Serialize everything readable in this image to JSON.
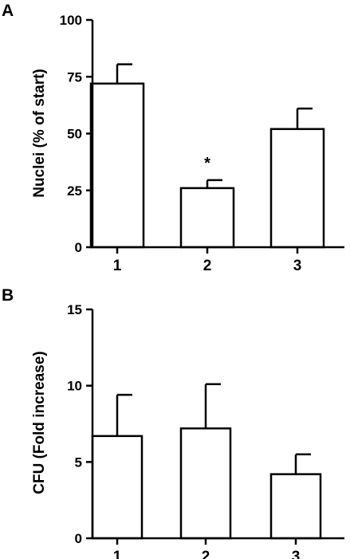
{
  "chart_data": [
    {
      "type": "bar",
      "panel_label": "A",
      "categories": [
        "1",
        "2",
        "3"
      ],
      "values": [
        72,
        26,
        52
      ],
      "errors": [
        8.5,
        3.5,
        9
      ],
      "ylabel": "Nuclei (% of start)",
      "ylim": [
        0,
        100
      ],
      "yticks": [
        "0",
        "25",
        "50",
        "75",
        "100"
      ],
      "annotations": [
        {
          "category_index": 1,
          "text": "*"
        }
      ]
    },
    {
      "type": "bar",
      "panel_label": "B",
      "categories": [
        "1",
        "2",
        "3"
      ],
      "values": [
        6.7,
        7.2,
        4.2
      ],
      "errors": [
        2.7,
        2.9,
        1.3
      ],
      "ylabel": "CFU (Fold increase)",
      "ylim": [
        0,
        15
      ],
      "yticks": [
        "0",
        "5",
        "10",
        "15"
      ],
      "annotations": []
    }
  ]
}
